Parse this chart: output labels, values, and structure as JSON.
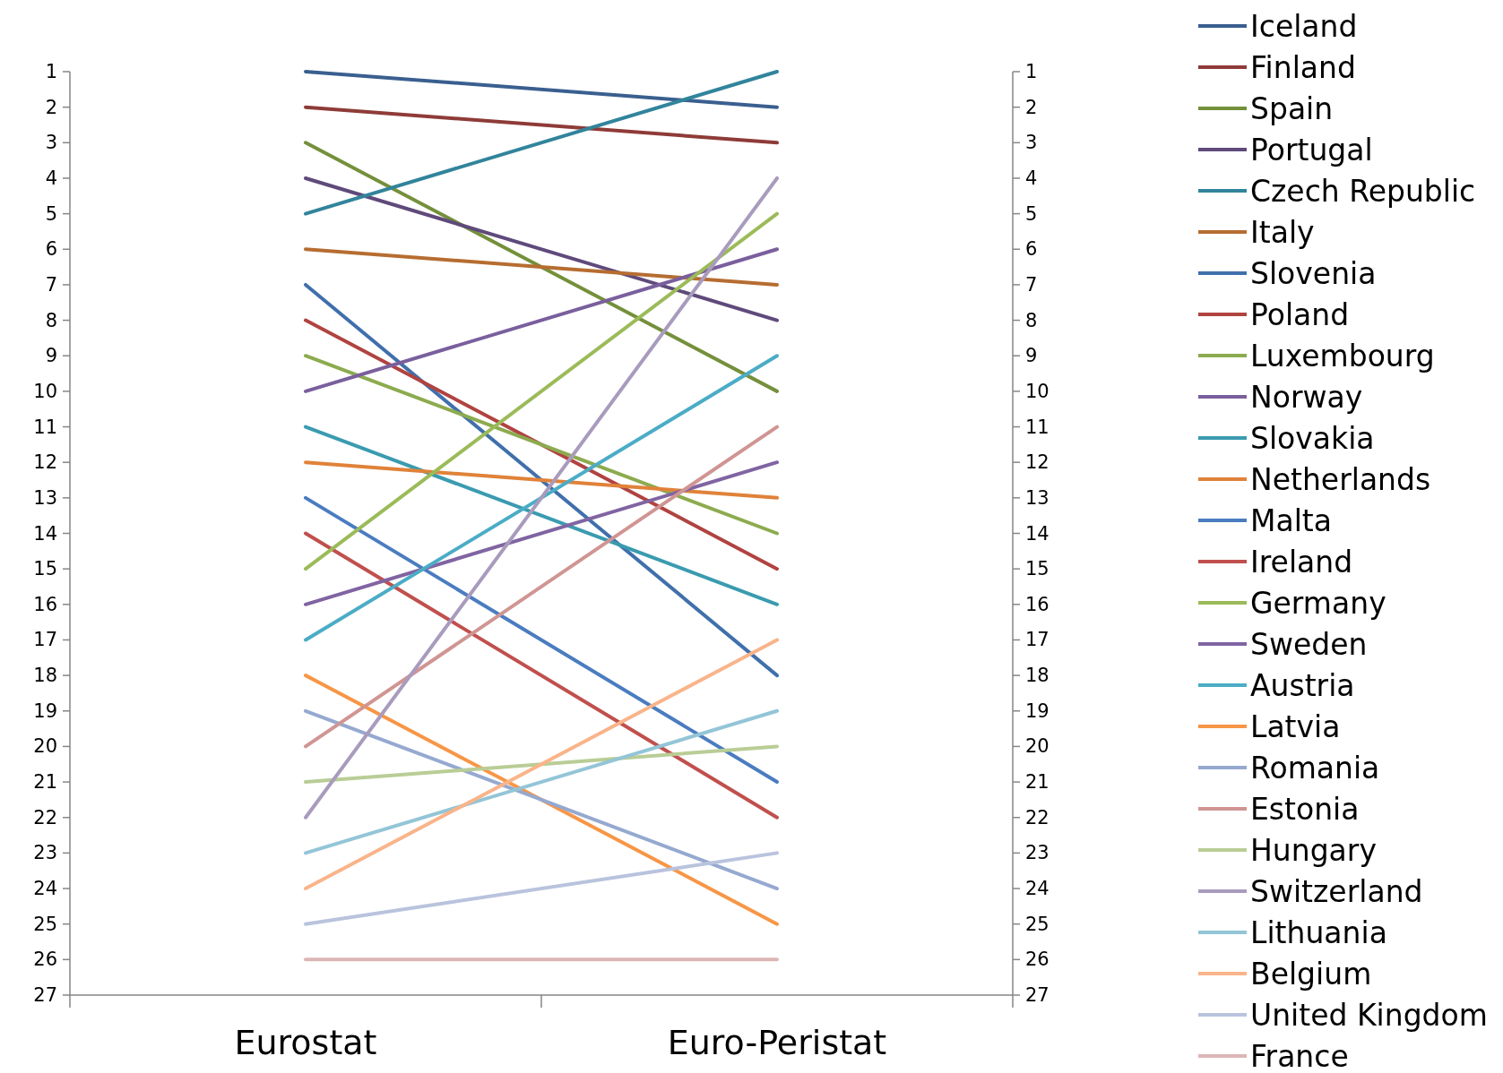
{
  "chart_data": {
    "type": "line",
    "categories": [
      "Eurostat",
      "Euro-Peristat"
    ],
    "ylim": [
      27,
      1
    ],
    "yticks": [
      1,
      2,
      3,
      4,
      5,
      6,
      7,
      8,
      9,
      10,
      11,
      12,
      13,
      14,
      15,
      16,
      17,
      18,
      19,
      20,
      21,
      22,
      23,
      24,
      25,
      26,
      27
    ],
    "y2lim": [
      27,
      1
    ],
    "y2ticks": [
      1,
      2,
      3,
      4,
      5,
      6,
      7,
      8,
      9,
      10,
      11,
      12,
      13,
      14,
      15,
      16,
      17,
      18,
      19,
      20,
      21,
      22,
      23,
      24,
      25,
      26,
      27
    ],
    "grid": false,
    "legend": "right",
    "marker": "none",
    "line_style": "solid",
    "series": [
      {
        "name": "Iceland",
        "color": "#3a5f8f",
        "values": [
          1,
          2
        ]
      },
      {
        "name": "Finland",
        "color": "#8e3b38",
        "values": [
          2,
          3
        ]
      },
      {
        "name": "Spain",
        "color": "#74903b",
        "values": [
          3,
          10
        ]
      },
      {
        "name": "Portugal",
        "color": "#5f4a7b",
        "values": [
          4,
          8
        ]
      },
      {
        "name": "Czech Republic",
        "color": "#31849b",
        "values": [
          5,
          1
        ]
      },
      {
        "name": "Italy",
        "color": "#b66d31",
        "values": [
          6,
          7
        ]
      },
      {
        "name": "Slovenia",
        "color": "#4070ab",
        "values": [
          7,
          18
        ]
      },
      {
        "name": "Poland",
        "color": "#b04340",
        "values": [
          8,
          15
        ]
      },
      {
        "name": "Luxembourg",
        "color": "#8cab4f",
        "values": [
          9,
          14
        ]
      },
      {
        "name": "Norway",
        "color": "#7a5f9d",
        "values": [
          10,
          6
        ]
      },
      {
        "name": "Slovakia",
        "color": "#3a9bb0",
        "values": [
          11,
          16
        ]
      },
      {
        "name": "Netherlands",
        "color": "#e0823a",
        "values": [
          12,
          13
        ]
      },
      {
        "name": "Malta",
        "color": "#4a7cc0",
        "values": [
          13,
          21
        ]
      },
      {
        "name": "Ireland",
        "color": "#c0504d",
        "values": [
          14,
          22
        ]
      },
      {
        "name": "Germany",
        "color": "#9bbb59",
        "values": [
          15,
          5
        ]
      },
      {
        "name": "Sweden",
        "color": "#8064a2",
        "values": [
          16,
          12
        ]
      },
      {
        "name": "Austria",
        "color": "#4bacc6",
        "values": [
          17,
          9
        ]
      },
      {
        "name": "Latvia",
        "color": "#f79646",
        "values": [
          18,
          25
        ]
      },
      {
        "name": "Romania",
        "color": "#95a9d0",
        "values": [
          19,
          24
        ]
      },
      {
        "name": "Estonia",
        "color": "#d09593",
        "values": [
          20,
          11
        ]
      },
      {
        "name": "Hungary",
        "color": "#b9cd96",
        "values": [
          21,
          20
        ]
      },
      {
        "name": "Switzerland",
        "color": "#a99bbd",
        "values": [
          22,
          4
        ]
      },
      {
        "name": "Lithuania",
        "color": "#93c5d7",
        "values": [
          23,
          19
        ]
      },
      {
        "name": "Belgium",
        "color": "#f9b48a",
        "values": [
          24,
          17
        ]
      },
      {
        "name": "United Kingdom",
        "color": "#b9c3dd",
        "values": [
          25,
          23
        ]
      },
      {
        "name": "France",
        "color": "#dcb6b5",
        "values": [
          26,
          26
        ]
      }
    ]
  }
}
